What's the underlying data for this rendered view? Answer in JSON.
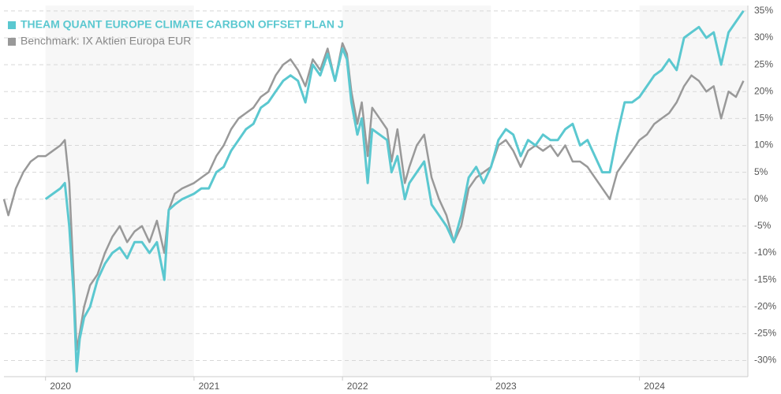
{
  "chart_data": {
    "type": "line",
    "x": [
      2019.72,
      2019.75,
      2019.8,
      2019.85,
      2019.9,
      2019.95,
      2020.0,
      2020.05,
      2020.1,
      2020.13,
      2020.16,
      2020.19,
      2020.21,
      2020.23,
      2020.26,
      2020.3,
      2020.35,
      2020.4,
      2020.45,
      2020.5,
      2020.55,
      2020.6,
      2020.65,
      2020.7,
      2020.75,
      2020.8,
      2020.83,
      2020.87,
      2020.92,
      2021.0,
      2021.05,
      2021.1,
      2021.15,
      2021.2,
      2021.25,
      2021.3,
      2021.35,
      2021.4,
      2021.45,
      2021.5,
      2021.55,
      2021.6,
      2021.65,
      2021.7,
      2021.75,
      2021.8,
      2021.85,
      2021.9,
      2021.95,
      2022.0,
      2022.03,
      2022.06,
      2022.1,
      2022.13,
      2022.17,
      2022.2,
      2022.25,
      2022.3,
      2022.33,
      2022.37,
      2022.42,
      2022.45,
      2022.5,
      2022.55,
      2022.6,
      2022.65,
      2022.7,
      2022.75,
      2022.8,
      2022.85,
      2022.9,
      2022.95,
      2023.0,
      2023.05,
      2023.1,
      2023.15,
      2023.2,
      2023.25,
      2023.3,
      2023.35,
      2023.4,
      2023.45,
      2023.5,
      2023.55,
      2023.6,
      2023.65,
      2023.7,
      2023.75,
      2023.8,
      2023.85,
      2023.9,
      2023.95,
      2024.0,
      2024.05,
      2024.1,
      2024.15,
      2024.2,
      2024.25,
      2024.3,
      2024.35,
      2024.4,
      2024.45,
      2024.5,
      2024.55,
      2024.6,
      2024.65,
      2024.7
    ],
    "series": [
      {
        "name": "Benchmark: IX Aktien Europa EUR",
        "color": "#999999",
        "values": [
          0,
          -3,
          2,
          5,
          7,
          8,
          8,
          9,
          10,
          11,
          3,
          -15,
          -28,
          -25,
          -20,
          -16,
          -14,
          -10,
          -7,
          -5,
          -8,
          -6,
          -5,
          -8,
          -4,
          -10,
          -2,
          1,
          2,
          3,
          4,
          5,
          8,
          10,
          13,
          15,
          16,
          17,
          19,
          20,
          23,
          25,
          26,
          24,
          21,
          26,
          24,
          28,
          22,
          29,
          27,
          20,
          14,
          18,
          8,
          17,
          15,
          13,
          7,
          13,
          3,
          6,
          10,
          12,
          4,
          0,
          -3,
          -8,
          -5,
          2,
          4,
          5,
          6,
          10,
          11,
          9,
          6,
          9,
          10,
          9,
          10,
          8,
          10,
          7,
          7,
          6,
          4,
          2,
          0,
          5,
          7,
          9,
          11,
          12,
          14,
          15,
          16,
          18,
          21,
          23,
          22,
          20,
          21,
          15,
          20,
          19,
          22
        ]
      },
      {
        "name": "THEAM QUANT EUROPE CLIMATE CARBON OFFSET PLAN J",
        "color": "#5bc8d0",
        "values": [
          null,
          null,
          null,
          null,
          null,
          null,
          0,
          1,
          2,
          3,
          -5,
          -18,
          -32,
          -26,
          -22,
          -20,
          -15,
          -12,
          -10,
          -9,
          -11,
          -8,
          -8,
          -10,
          -8,
          -15,
          -2,
          -1,
          0,
          1,
          2,
          2,
          5,
          6,
          9,
          11,
          13,
          14,
          17,
          18,
          20,
          22,
          23,
          22,
          18,
          25,
          23,
          27,
          22,
          28,
          26,
          18,
          12,
          15,
          3,
          13,
          12,
          11,
          5,
          8,
          0,
          3,
          5,
          7,
          -1,
          -3,
          -5,
          -8,
          -3,
          4,
          6,
          3,
          6,
          11,
          13,
          12,
          8,
          11,
          10,
          12,
          11,
          11,
          13,
          14,
          10,
          11,
          8,
          5,
          5,
          12,
          18,
          18,
          19,
          21,
          23,
          24,
          26,
          24,
          30,
          31,
          32,
          30,
          31,
          25,
          31,
          33,
          35
        ]
      }
    ],
    "xlim": [
      2019.72,
      2024.73
    ],
    "xticks": [
      2020,
      2021,
      2022,
      2023,
      2024
    ],
    "ylim": [
      -33,
      36
    ],
    "yticks": [
      {
        "value": -30,
        "label": "-30%"
      },
      {
        "value": -25,
        "label": "-25%"
      },
      {
        "value": -20,
        "label": "-20%"
      },
      {
        "value": -15,
        "label": "-15%"
      },
      {
        "value": -10,
        "label": "-10%"
      },
      {
        "value": -5,
        "label": "-5%"
      },
      {
        "value": 0,
        "label": "0%"
      },
      {
        "value": 5,
        "label": "5%"
      },
      {
        "value": 10,
        "label": "10%"
      },
      {
        "value": 15,
        "label": "15%"
      },
      {
        "value": 20,
        "label": "20%"
      },
      {
        "value": 25,
        "label": "25%"
      },
      {
        "value": 30,
        "label": "30%"
      },
      {
        "value": 35,
        "label": "35%"
      }
    ],
    "grid": true,
    "legend": "top-left"
  }
}
